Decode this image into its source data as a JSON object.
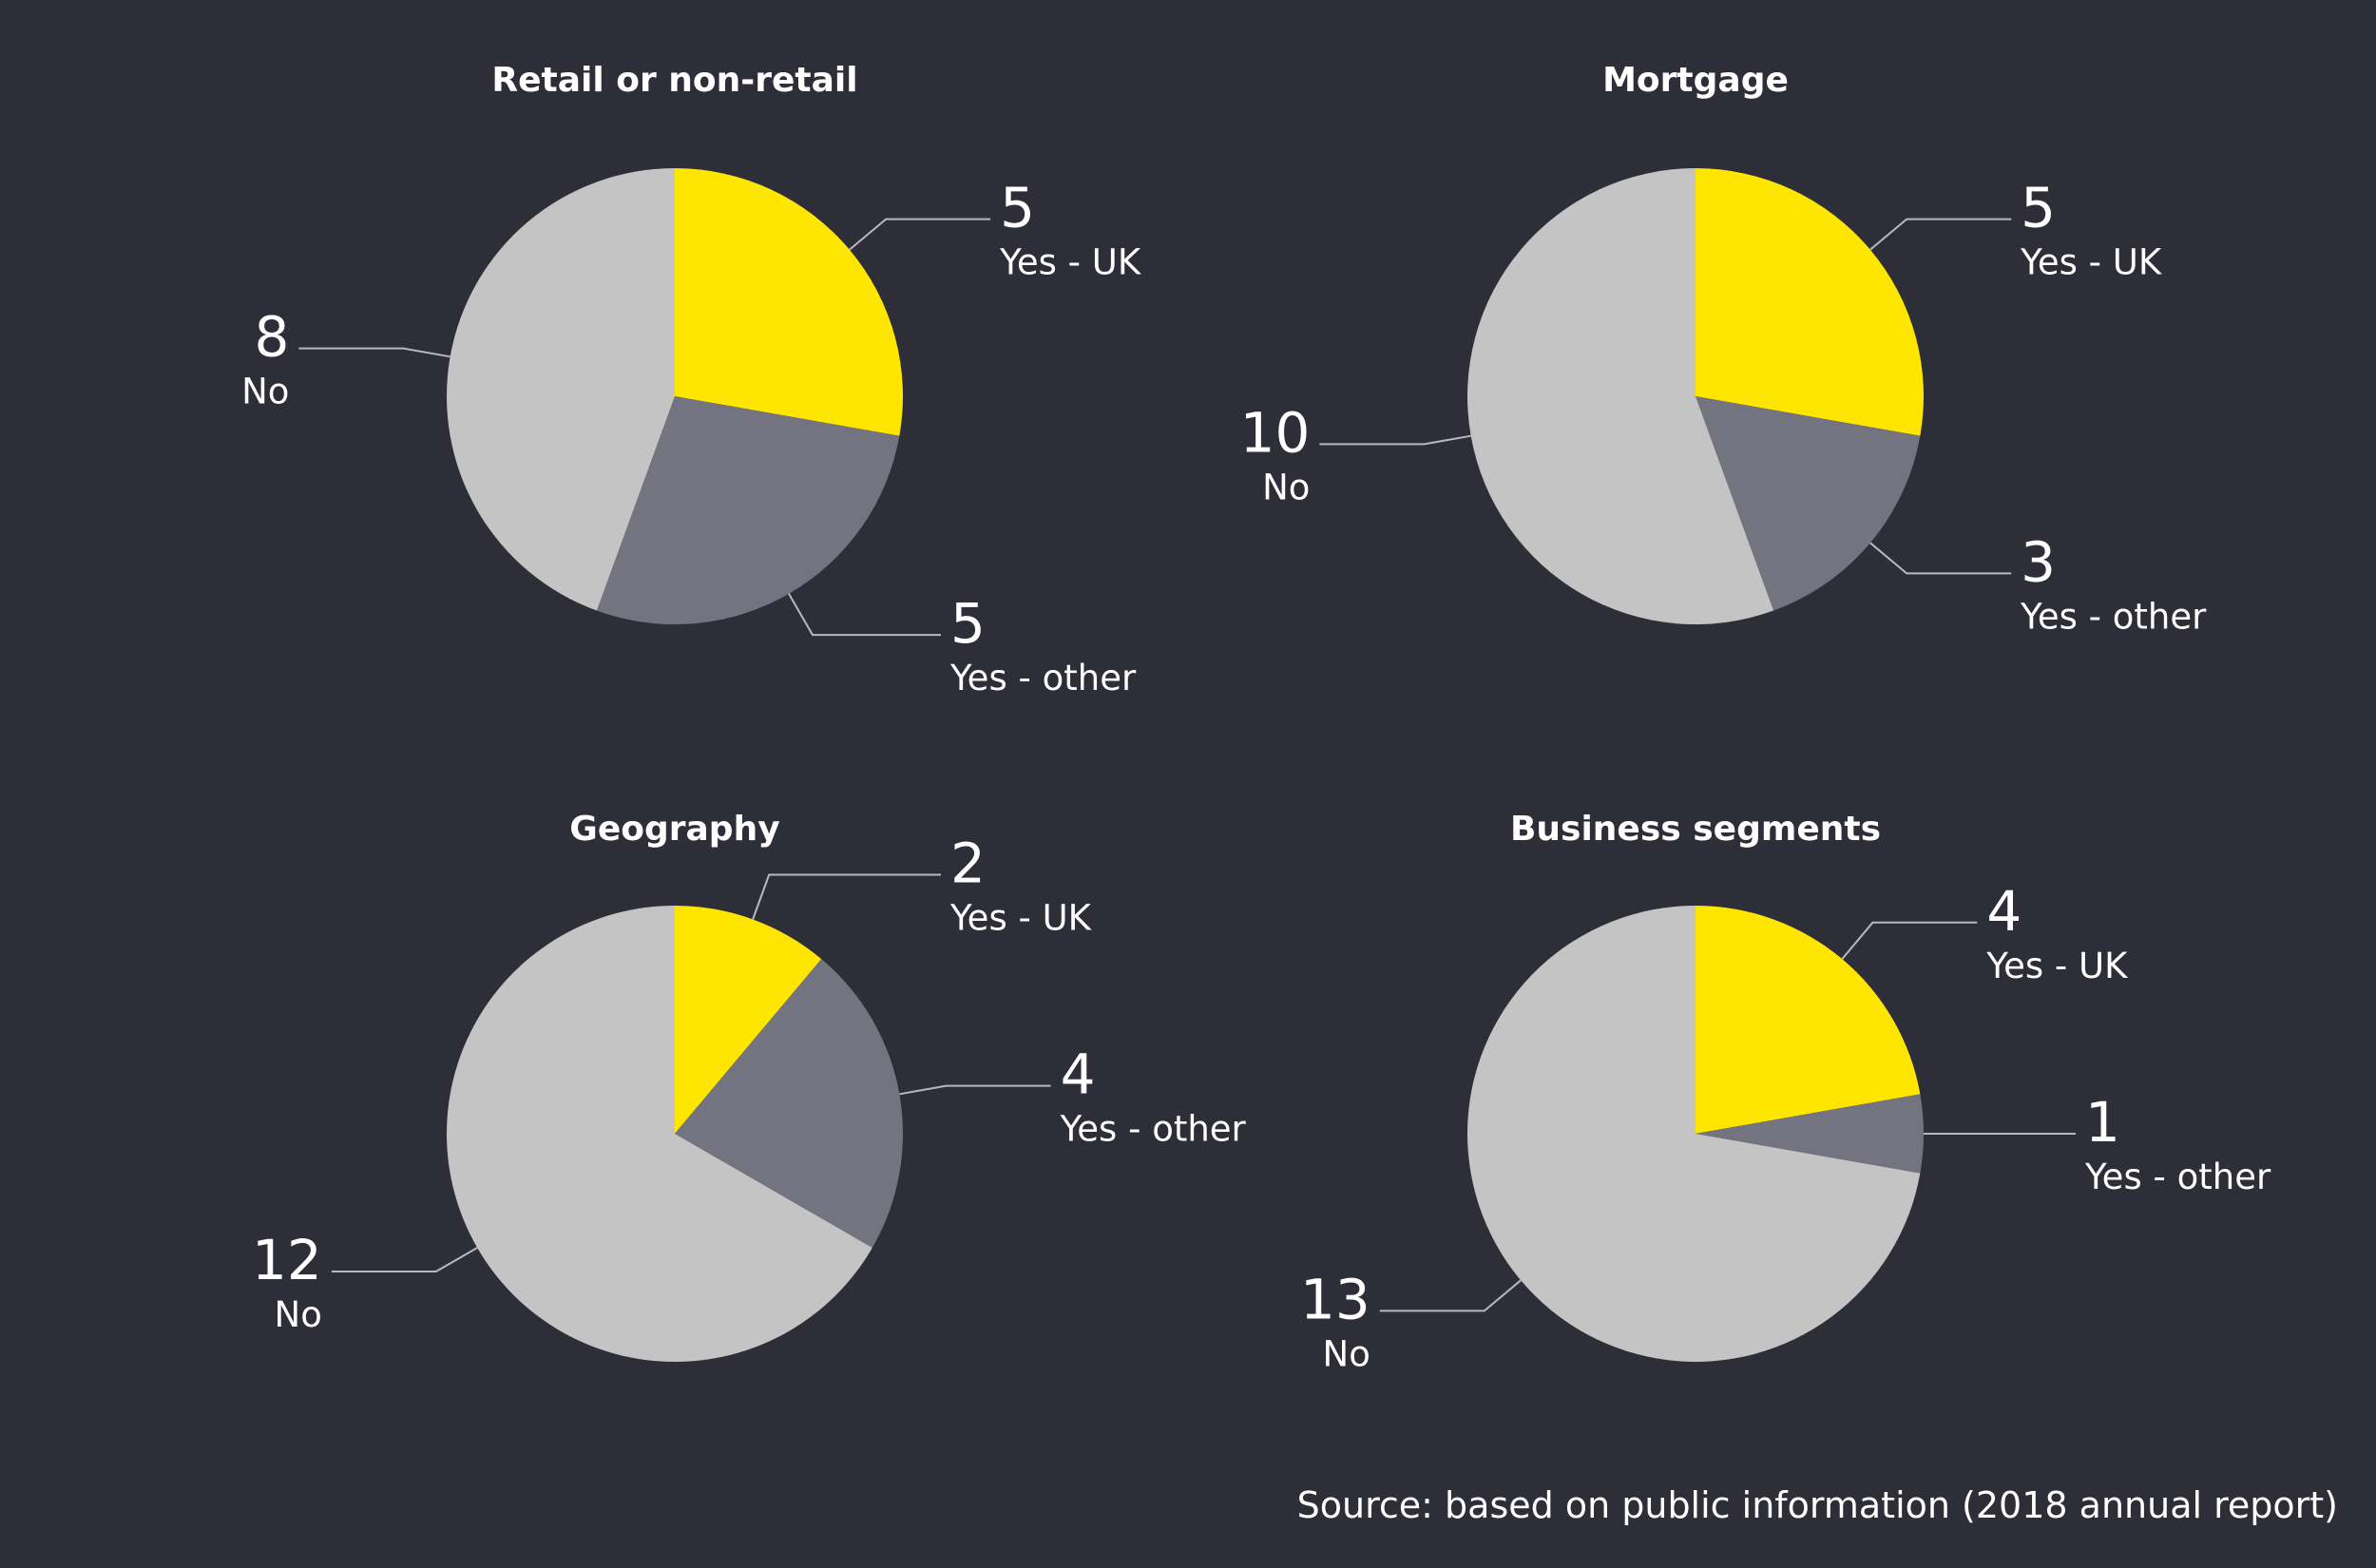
{
  "colors": {
    "background": "#2e2e38",
    "yes_uk": "#ffe600",
    "yes_other": "#747480",
    "no": "#c4c4c4",
    "text": "#ffffff"
  },
  "chart_data": [
    {
      "type": "pie",
      "title": "Retail or non-retail",
      "categories": [
        "Yes - UK",
        "Yes - other",
        "No"
      ],
      "values": [
        5,
        5,
        8
      ]
    },
    {
      "type": "pie",
      "title": "Mortgage",
      "categories": [
        "Yes - UK",
        "Yes - other",
        "No"
      ],
      "values": [
        5,
        3,
        10
      ]
    },
    {
      "type": "pie",
      "title": "Geography",
      "categories": [
        "Yes - UK",
        "Yes - other",
        "No"
      ],
      "values": [
        2,
        4,
        12
      ]
    },
    {
      "type": "pie",
      "title": "Business segments",
      "categories": [
        "Yes - UK",
        "Yes - other",
        "No"
      ],
      "values": [
        4,
        1,
        13
      ]
    }
  ],
  "source": "Source: based on public information (2018 annual report)"
}
